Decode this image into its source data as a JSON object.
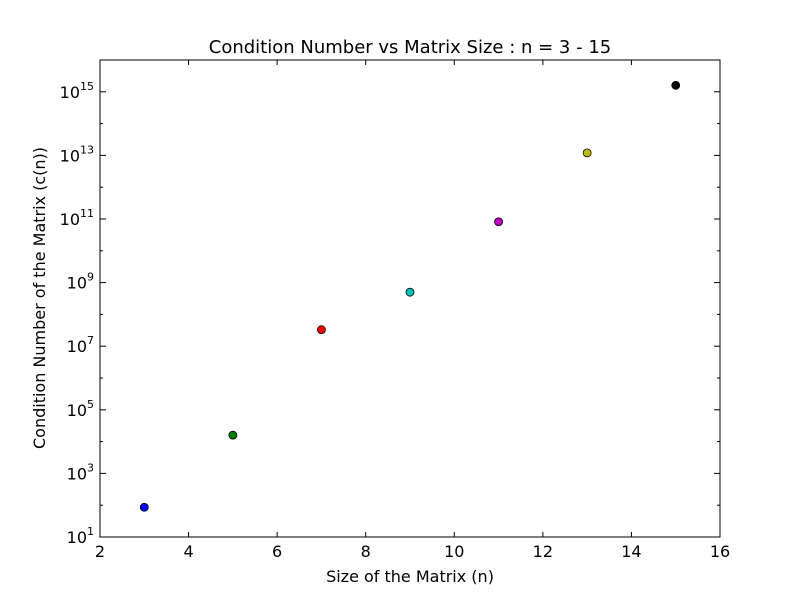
{
  "chart_data": {
    "type": "scatter",
    "title": "Condition Number vs Matrix Size : n = 3 - 15",
    "xlabel": "Size of the Matrix (n)",
    "ylabel": "Condition Number of the Matrix (c(n))",
    "xlim": [
      2,
      16
    ],
    "ylim": [
      10,
      1e+16
    ],
    "yscale": "log",
    "grid": false,
    "x_ticks": [
      2,
      4,
      6,
      8,
      10,
      12,
      14,
      16
    ],
    "x_tick_labels": [
      "2",
      "4",
      "6",
      "8",
      "10",
      "12",
      "14",
      "16"
    ],
    "y_ticks": [
      10.0,
      1000.0,
      100000.0,
      10000000.0,
      1000000000.0,
      100000000000.0,
      10000000000000.0,
      1000000000000000.0
    ],
    "y_tick_labels": [
      {
        "base": "10",
        "exp": "1"
      },
      {
        "base": "10",
        "exp": "3"
      },
      {
        "base": "10",
        "exp": "5"
      },
      {
        "base": "10",
        "exp": "7"
      },
      {
        "base": "10",
        "exp": "9"
      },
      {
        "base": "10",
        "exp": "11"
      },
      {
        "base": "10",
        "exp": "13"
      },
      {
        "base": "10",
        "exp": "15"
      }
    ],
    "points": [
      {
        "x": 3,
        "y": 86,
        "color": "#0000ff"
      },
      {
        "x": 5,
        "y": 16000,
        "color": "#007f00"
      },
      {
        "x": 7,
        "y": 33000000.0,
        "color": "#ff0000"
      },
      {
        "x": 9,
        "y": 500000000.0,
        "color": "#00bfbf"
      },
      {
        "x": 11,
        "y": 82000000000.0,
        "color": "#bf00bf"
      },
      {
        "x": 13,
        "y": 12000000000000.0,
        "color": "#bfbf00"
      },
      {
        "x": 15,
        "y": 1600000000000000.0,
        "color": "#000000"
      }
    ]
  }
}
